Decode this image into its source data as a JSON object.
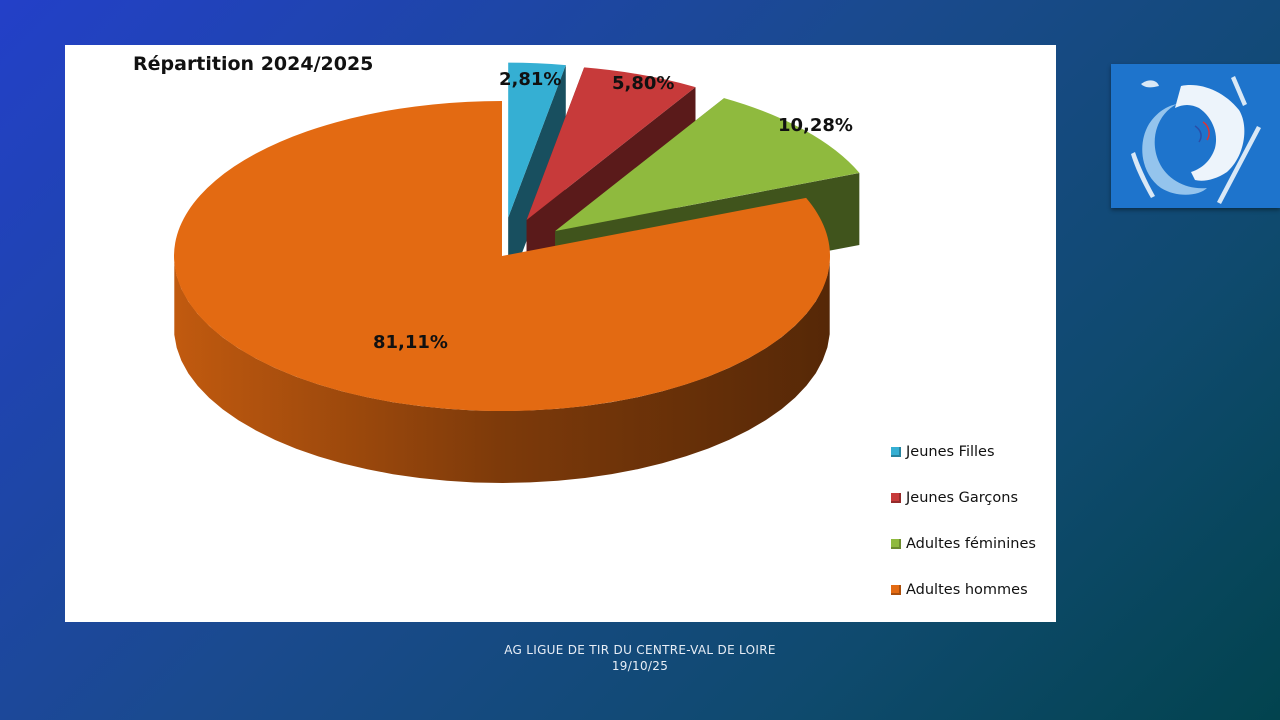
{
  "slide": {
    "footer_line1": "AG LIGUE DE TIR DU CENTRE-VAL DE LOIRE",
    "footer_line2": "19/10/25"
  },
  "logo": {
    "icon": "federation-shooting-logo-icon"
  },
  "chart_data": {
    "type": "pie",
    "title": "Répartition 2024/2025",
    "legend_position": "right",
    "categories": [
      "Jeunes Filles",
      "Jeunes Garçons",
      "Adultes féminines",
      "Adultes hommes"
    ],
    "values": [
      2.81,
      5.8,
      10.28,
      81.11
    ],
    "labels": [
      "2,81%",
      "5,80%",
      "10,28%",
      "81,11%"
    ],
    "colors": [
      "#35afd3",
      "#c73a3a",
      "#8fba3e",
      "#e36a12"
    ],
    "exploded": [
      true,
      true,
      true,
      false
    ],
    "style": "3d"
  }
}
